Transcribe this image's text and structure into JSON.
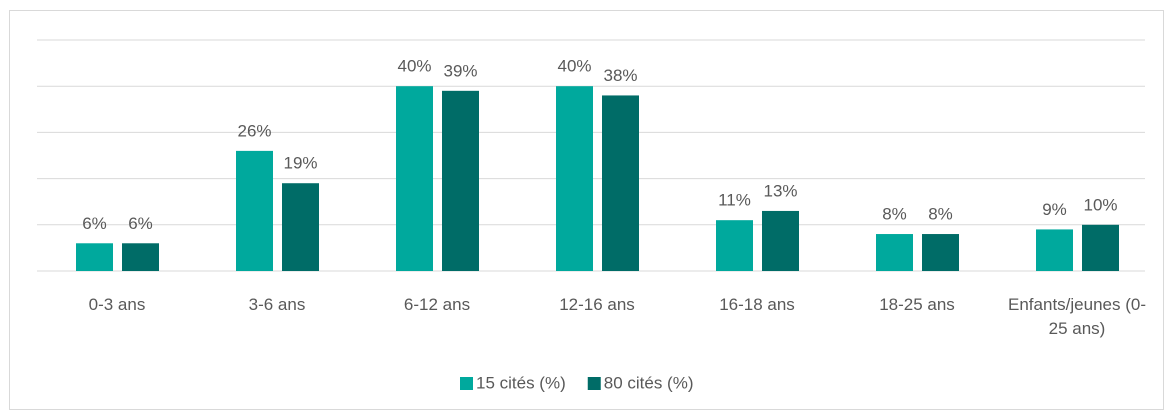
{
  "chart_data": {
    "type": "bar",
    "categories": [
      "0-3 ans",
      "3-6 ans",
      "6-12 ans",
      "12-16 ans",
      "16-18 ans",
      "18-25 ans",
      "Enfants/jeunes (0-25 ans)"
    ],
    "series": [
      {
        "name": "15 cités (%)",
        "color": "#00a99d",
        "values": [
          6,
          26,
          40,
          40,
          11,
          8,
          9
        ],
        "value_labels": [
          "6%",
          "26%",
          "40%",
          "40%",
          "11%",
          "8%",
          "9%"
        ]
      },
      {
        "name": "80 cités (%)",
        "color": "#006c67",
        "values": [
          6,
          19,
          39,
          38,
          13,
          8,
          10
        ],
        "value_labels": [
          "6%",
          "19%",
          "39%",
          "38%",
          "13%",
          "8%",
          "10%"
        ]
      }
    ],
    "ylim": [
      0,
      50
    ],
    "yticks": [
      0,
      10,
      20,
      30,
      40,
      50
    ],
    "grid": true,
    "legend": "bottom"
  }
}
